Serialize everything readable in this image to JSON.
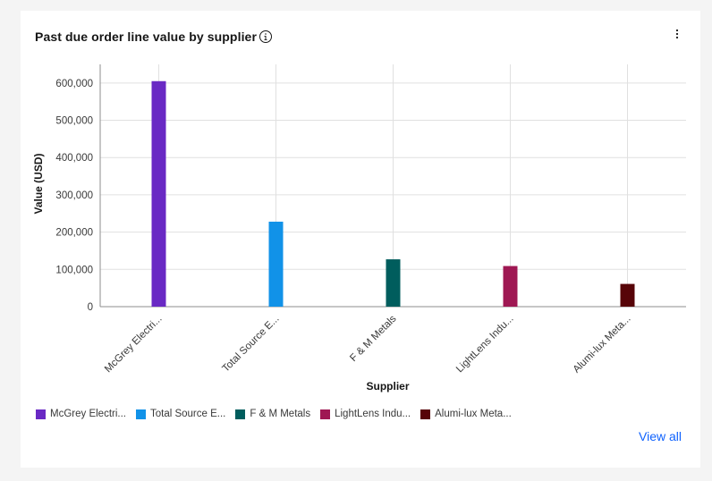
{
  "card": {
    "title": "Past due order line value by supplier",
    "view_all_label": "View all"
  },
  "icons": {
    "info": "info-circle-icon",
    "overflow": "overflow-menu-vertical-icon"
  },
  "chart_data": {
    "type": "bar",
    "title": "Past due order line value by supplier",
    "xlabel": "Supplier",
    "ylabel": "Value (USD)",
    "ylim": [
      0,
      650000
    ],
    "yticks": [
      0,
      100000,
      200000,
      300000,
      400000,
      500000,
      600000
    ],
    "ytick_labels": [
      "0",
      "100,000",
      "200,000",
      "300,000",
      "400,000",
      "500,000",
      "600,000"
    ],
    "categories": [
      "McGrey Electri...",
      "Total Source E...",
      "F & M Metals",
      "LightLens Indu...",
      "Alumi-lux Meta..."
    ],
    "values": [
      605000,
      228000,
      127000,
      109000,
      61000
    ],
    "colors": [
      "#6929c4",
      "#1192e8",
      "#005d5d",
      "#9f1853",
      "#570408"
    ],
    "grid": true,
    "legend": "bottom-left",
    "legend_entries": [
      "McGrey Electri...",
      "Total Source E...",
      "F & M Metals",
      "LightLens Indu...",
      "Alumi-lux Meta..."
    ]
  }
}
